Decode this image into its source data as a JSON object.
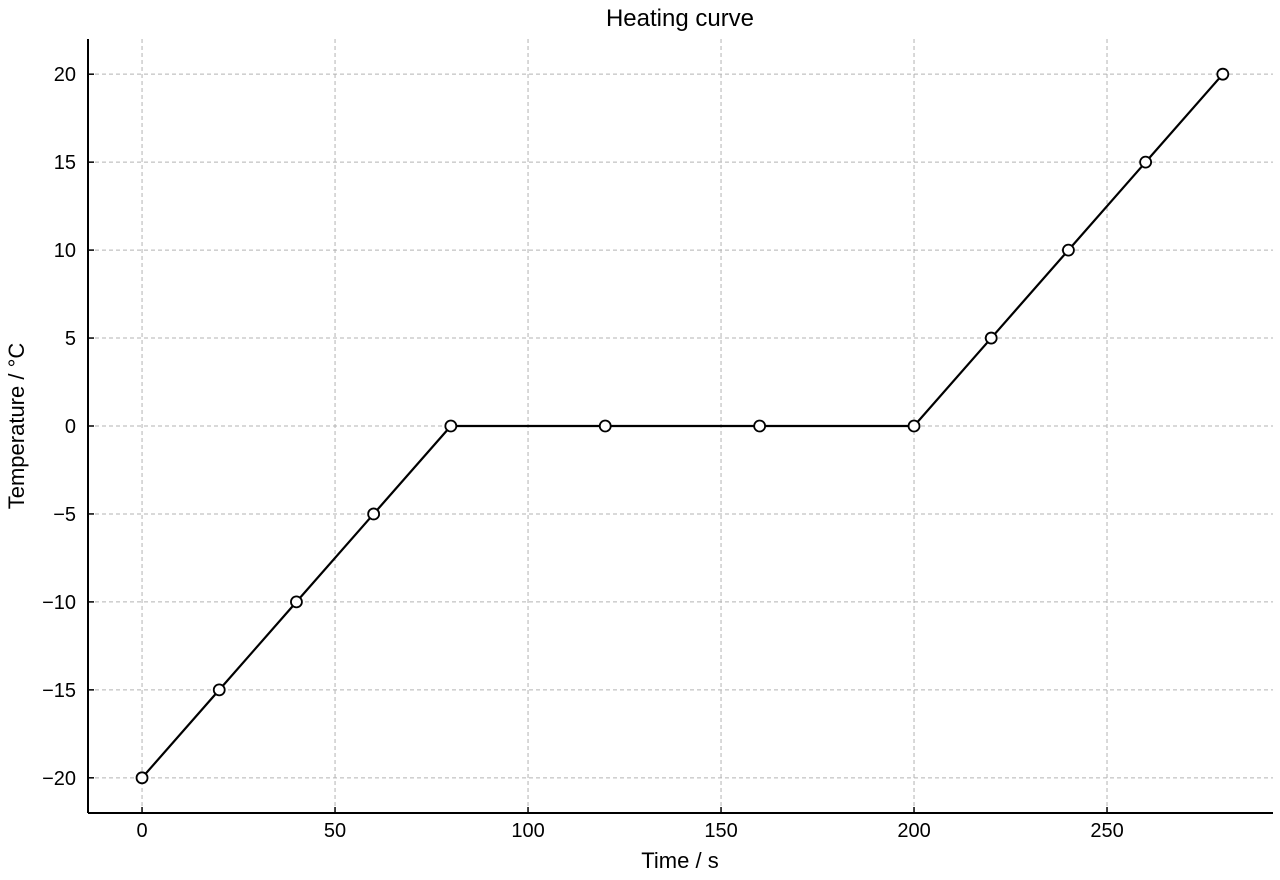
{
  "chart_data": {
    "type": "line",
    "title": "Heating curve",
    "xlabel": "Time / s",
    "ylabel": "Temperature / °C",
    "xlim": [
      -14,
      293
    ],
    "ylim": [
      -22,
      22
    ],
    "xticks": [
      0,
      50,
      100,
      150,
      200,
      250
    ],
    "yticks": [
      -20,
      -15,
      -10,
      -5,
      0,
      5,
      10,
      15,
      20
    ],
    "xtick_labels": [
      "0",
      "50",
      "100",
      "150",
      "200",
      "250"
    ],
    "ytick_labels": [
      "−20",
      "−15",
      "−10",
      "−5",
      "0",
      "5",
      "10",
      "15",
      "20"
    ],
    "grid": true,
    "legend": "none",
    "series": [
      {
        "x": [
          0,
          20,
          40,
          60,
          80,
          120,
          160,
          200,
          220,
          240,
          260,
          280
        ],
        "y": [
          -20,
          -15,
          -10,
          -5,
          0,
          0,
          0,
          0,
          5,
          10,
          15,
          20
        ],
        "color": "#000000",
        "marker": "open-circle"
      }
    ]
  }
}
